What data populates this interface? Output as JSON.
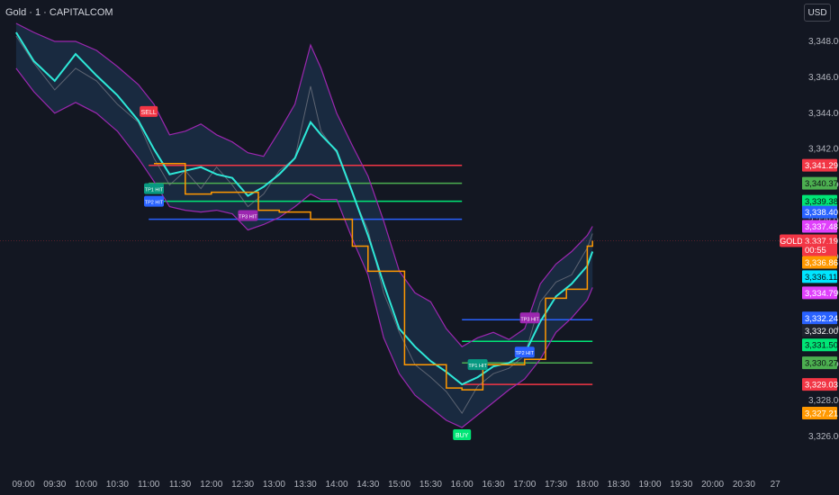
{
  "header": {
    "title": "Gold · 1 · CAPITALCOM",
    "currency_button": "USD"
  },
  "chart_data": {
    "type": "line",
    "title": "Gold · 1 · CAPITALCOM",
    "xlabel": "",
    "ylabel": "",
    "ylim": [
      3325.2,
      3349.2
    ],
    "grid": false,
    "x_ticks": [
      "09:00",
      "09:30",
      "10:00",
      "10:30",
      "11:00",
      "11:30",
      "12:00",
      "12:30",
      "13:00",
      "13:30",
      "14:00",
      "14:30",
      "15:00",
      "15:30",
      "16:00",
      "16:30",
      "17:00",
      "17:30",
      "18:00",
      "18:30",
      "19:00",
      "19:30",
      "20:00",
      "20:30",
      "27"
    ],
    "y_ticks": [
      3326.0,
      3328.0,
      3330.0,
      3332.0,
      3334.0,
      3336.0,
      3338.0,
      3340.0,
      3342.0,
      3344.0,
      3346.0,
      3348.0
    ],
    "price_series": {
      "name": "Price",
      "x": [
        "08:53",
        "09:10",
        "09:30",
        "09:50",
        "10:10",
        "10:30",
        "10:50",
        "11:05",
        "11:20",
        "11:35",
        "11:50",
        "12:05",
        "12:20",
        "12:35",
        "12:50",
        "13:05",
        "13:20",
        "13:35",
        "13:45",
        "14:00",
        "14:15",
        "14:30",
        "14:45",
        "15:00",
        "15:15",
        "15:30",
        "15:45",
        "16:00",
        "16:15",
        "16:30",
        "16:45",
        "17:00",
        "17:15",
        "17:30",
        "17:45",
        "18:00",
        "18:05"
      ],
      "values": [
        3348.3,
        3346.8,
        3345.3,
        3346.5,
        3345.8,
        3344.5,
        3343.5,
        3341.5,
        3340.0,
        3340.8,
        3339.8,
        3341.0,
        3340.0,
        3338.8,
        3339.5,
        3340.8,
        3341.5,
        3345.5,
        3343.0,
        3341.8,
        3339.5,
        3337.5,
        3334.0,
        3331.8,
        3330.0,
        3329.3,
        3328.5,
        3327.3,
        3328.8,
        3329.5,
        3329.8,
        3330.5,
        3333.5,
        3334.6,
        3335.0,
        3336.5,
        3337.3
      ]
    },
    "series": [
      {
        "name": "Basis",
        "color": "#2ee8d8",
        "x": [
          "08:53",
          "09:10",
          "09:30",
          "09:50",
          "10:10",
          "10:30",
          "10:50",
          "11:05",
          "11:20",
          "11:35",
          "11:50",
          "12:05",
          "12:20",
          "12:35",
          "12:50",
          "13:05",
          "13:20",
          "13:35",
          "13:45",
          "14:00",
          "14:15",
          "14:30",
          "14:45",
          "15:00",
          "15:15",
          "15:30",
          "15:45",
          "16:00",
          "16:15",
          "16:30",
          "16:45",
          "17:00",
          "17:15",
          "17:30",
          "17:45",
          "18:00",
          "18:05"
        ],
        "values": [
          3348.5,
          3346.9,
          3345.8,
          3347.3,
          3346.1,
          3345.0,
          3343.6,
          3342.0,
          3340.6,
          3340.8,
          3341.0,
          3340.6,
          3340.4,
          3339.4,
          3339.9,
          3340.6,
          3341.5,
          3343.5,
          3342.8,
          3341.9,
          3339.6,
          3337.2,
          3334.5,
          3332.0,
          3331.0,
          3330.2,
          3329.6,
          3328.9,
          3329.3,
          3329.9,
          3330.1,
          3330.6,
          3332.4,
          3333.8,
          3334.5,
          3335.5,
          3336.3
        ]
      },
      {
        "name": "Upper Band",
        "color": "#9c27b0",
        "x": [
          "08:53",
          "09:10",
          "09:30",
          "09:50",
          "10:10",
          "10:30",
          "10:50",
          "11:05",
          "11:20",
          "11:35",
          "11:50",
          "12:05",
          "12:20",
          "12:35",
          "12:50",
          "13:05",
          "13:20",
          "13:35",
          "13:45",
          "14:00",
          "14:15",
          "14:30",
          "14:45",
          "15:00",
          "15:15",
          "15:30",
          "15:45",
          "16:00",
          "16:15",
          "16:30",
          "16:45",
          "17:00",
          "17:15",
          "17:30",
          "17:45",
          "18:00",
          "18:05"
        ],
        "values": [
          3349.0,
          3348.5,
          3348.0,
          3348.0,
          3347.5,
          3346.6,
          3345.6,
          3344.5,
          3342.8,
          3343.0,
          3343.4,
          3342.8,
          3342.4,
          3341.8,
          3341.6,
          3343.0,
          3344.5,
          3347.8,
          3346.5,
          3344.0,
          3342.2,
          3340.5,
          3338.0,
          3335.2,
          3334.0,
          3333.5,
          3332.0,
          3331.0,
          3331.5,
          3331.8,
          3331.4,
          3332.0,
          3334.5,
          3335.6,
          3336.3,
          3337.2,
          3337.7
        ]
      },
      {
        "name": "Lower Band",
        "color": "#9c27b0",
        "x": [
          "08:53",
          "09:10",
          "09:30",
          "09:50",
          "10:10",
          "10:30",
          "10:50",
          "11:05",
          "11:20",
          "11:35",
          "11:50",
          "12:05",
          "12:20",
          "12:35",
          "12:50",
          "13:05",
          "13:20",
          "13:35",
          "13:45",
          "14:00",
          "14:15",
          "14:30",
          "14:45",
          "15:00",
          "15:15",
          "15:30",
          "15:45",
          "16:00",
          "16:15",
          "16:30",
          "16:45",
          "17:00",
          "17:15",
          "17:30",
          "17:45",
          "18:00",
          "18:05"
        ],
        "values": [
          3346.5,
          3345.2,
          3344.0,
          3344.6,
          3344.0,
          3343.0,
          3341.5,
          3340.2,
          3338.8,
          3338.6,
          3338.5,
          3338.6,
          3338.4,
          3337.5,
          3337.8,
          3338.2,
          3338.8,
          3339.5,
          3339.2,
          3339.2,
          3337.0,
          3335.0,
          3331.5,
          3329.5,
          3328.3,
          3327.6,
          3326.9,
          3326.5,
          3327.2,
          3327.9,
          3328.6,
          3329.2,
          3330.3,
          3331.8,
          3332.6,
          3333.6,
          3334.3
        ]
      },
      {
        "name": "Trail Stop",
        "color": "#ff9800",
        "x": [
          "11:05",
          "11:35",
          "12:00",
          "12:45",
          "13:05",
          "13:35",
          "14:15",
          "14:30",
          "15:05",
          "15:45",
          "16:00",
          "16:20",
          "16:40",
          "17:00",
          "17:20",
          "17:40",
          "18:00",
          "18:05"
        ],
        "values": [
          3341.2,
          3339.5,
          3339.6,
          3338.6,
          3338.5,
          3338.1,
          3336.6,
          3335.2,
          3330.0,
          3328.7,
          3328.6,
          3330.0,
          3330.0,
          3330.3,
          3333.7,
          3334.2,
          3336.6,
          3336.9
        ]
      }
    ],
    "signals": [
      {
        "label": "SELL",
        "time": "11:00",
        "price": 3344.1,
        "color": "#f23645"
      },
      {
        "label": "TP1 HIT",
        "time": "11:05",
        "price": 3339.8,
        "color": "#089981"
      },
      {
        "label": "TP2 HIT",
        "time": "11:05",
        "price": 3339.1,
        "color": "#2962ff"
      },
      {
        "label": "TP3 HIT",
        "time": "12:35",
        "price": 3338.3,
        "color": "#9c27b0"
      },
      {
        "label": "BUY",
        "time": "16:00",
        "price": 3326.1,
        "color": "#00e676"
      },
      {
        "label": "TP1 HIT",
        "time": "16:15",
        "price": 3330.0,
        "color": "#089981"
      },
      {
        "label": "TP2 HIT",
        "time": "17:00",
        "price": 3330.7,
        "color": "#2962ff"
      },
      {
        "label": "TP3 HIT",
        "time": "17:05",
        "price": 3332.6,
        "color": "#9c27b0"
      }
    ],
    "levels": [
      {
        "name": "SL",
        "price": 3341.1,
        "color": "#f23645",
        "from": "11:00",
        "to": "16:00"
      },
      {
        "name": "TP1",
        "price": 3340.1,
        "color": "#4caf50",
        "from": "11:00",
        "to": "16:00"
      },
      {
        "name": "TP2",
        "price": 3339.1,
        "color": "#00e676",
        "from": "11:00",
        "to": "16:00"
      },
      {
        "name": "TP3",
        "price": 3338.1,
        "color": "#2962ff",
        "from": "11:00",
        "to": "16:00"
      },
      {
        "name": "TP3",
        "price": 3332.5,
        "color": "#2962ff",
        "from": "16:00",
        "to": "18:05"
      },
      {
        "name": "TP2",
        "price": 3331.3,
        "color": "#00e676",
        "from": "16:00",
        "to": "18:05"
      },
      {
        "name": "TP1",
        "price": 3330.1,
        "color": "#4caf50",
        "from": "16:00",
        "to": "18:05"
      },
      {
        "name": "SL",
        "price": 3328.9,
        "color": "#f23645",
        "from": "16:00",
        "to": "18:05"
      }
    ],
    "price_labels": [
      {
        "text": "3,341.29",
        "price": 3341.1,
        "color": "#f23645"
      },
      {
        "text": "3,340.37",
        "price": 3340.1,
        "color": "#4caf50"
      },
      {
        "text": "3,339.38",
        "price": 3339.1,
        "color": "#00e676"
      },
      {
        "text": "3,338.40",
        "price": 3338.5,
        "color": "#2962ff"
      },
      {
        "text": "3,337.48",
        "price": 3337.7,
        "color": "#e040fb"
      },
      {
        "text": "3,337.19",
        "price": 3336.9,
        "color": "#f23645"
      },
      {
        "text": "00:55",
        "price": 3336.4,
        "color": "#f23645"
      },
      {
        "text": "3,336.86",
        "price": 3335.7,
        "color": "#ff9800"
      },
      {
        "text": "3,336.11",
        "price": 3334.9,
        "color": "#00e5ff"
      },
      {
        "text": "3,334.79",
        "price": 3334.0,
        "color": "#e040fb"
      },
      {
        "text": "3,332.24",
        "price": 3332.6,
        "color": "#2962ff"
      },
      {
        "text": "3,332.00",
        "price": 3331.9,
        "color": "#1e222d"
      },
      {
        "text": "3,331.50",
        "price": 3331.1,
        "color": "#00e676"
      },
      {
        "text": "3,330.27",
        "price": 3330.1,
        "color": "#4caf50"
      },
      {
        "text": "3,329.03",
        "price": 3328.9,
        "color": "#f23645"
      },
      {
        "text": "3,327.21",
        "price": 3327.3,
        "color": "#ff9800"
      }
    ],
    "symbol_tag": {
      "text": "GOLD",
      "price": 3336.9,
      "color": "#f23645"
    },
    "last_price": 3337.19
  }
}
